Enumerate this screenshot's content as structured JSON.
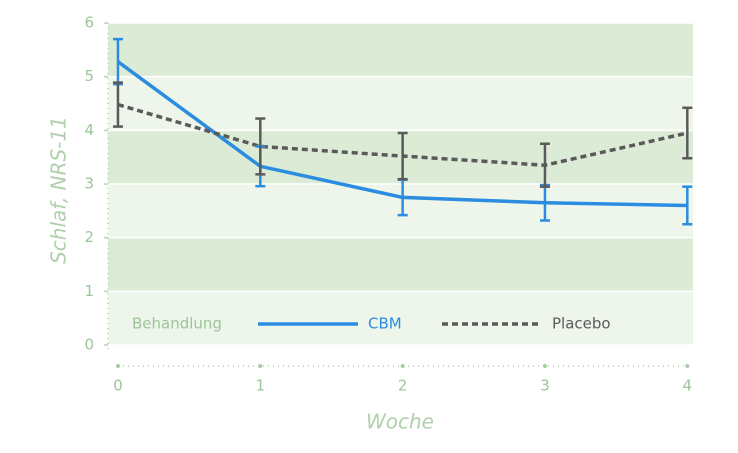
{
  "chart_data": {
    "type": "line",
    "x_label": "Woche",
    "y_label": "Schlaf, NRS-11",
    "x": [
      0,
      1,
      2,
      3,
      4
    ],
    "xlim": [
      -0.07,
      4.04
    ],
    "xticks": [
      0,
      1,
      2,
      3,
      4
    ],
    "ylim": [
      0,
      6
    ],
    "yticks": [
      0,
      1,
      2,
      3,
      4,
      5,
      6
    ],
    "legend_title": "Behandlung",
    "legend_position": "bottom",
    "series": [
      {
        "name": "CBM",
        "color": "#2a8de0",
        "dashed": false,
        "values": [
          5.28,
          3.33,
          2.75,
          2.65,
          2.6
        ],
        "errors": [
          0.42,
          0.37,
          0.33,
          0.33,
          0.35
        ]
      },
      {
        "name": "Placebo",
        "color": "#5a5a5a",
        "dashed": true,
        "values": [
          4.48,
          3.7,
          3.52,
          3.35,
          3.95
        ],
        "errors": [
          0.41,
          0.52,
          0.43,
          0.4,
          0.47
        ]
      }
    ]
  }
}
